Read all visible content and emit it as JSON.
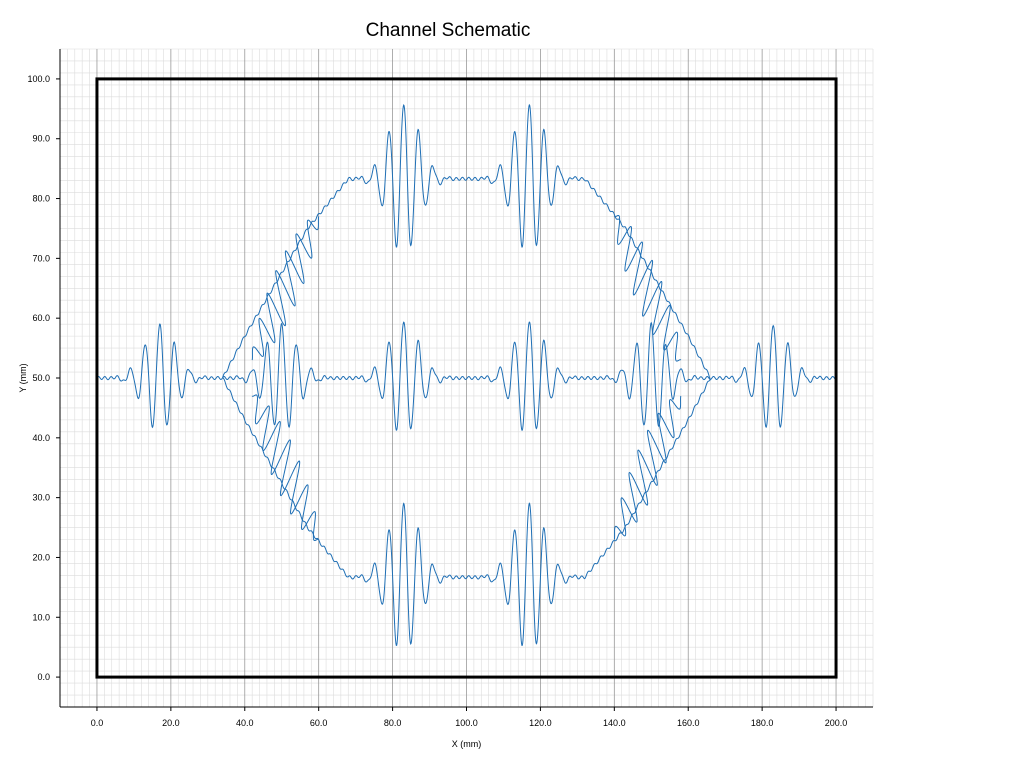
{
  "chart_data": {
    "type": "line",
    "title": "Channel Schematic",
    "xlabel": "X (mm)",
    "ylabel": "Y (mm)",
    "xlim": [
      -10,
      210
    ],
    "ylim": [
      -5,
      105
    ],
    "x_ticks": [
      "0.0",
      "20.0",
      "40.0",
      "60.0",
      "80.0",
      "100.0",
      "120.0",
      "140.0",
      "160.0",
      "180.0",
      "200.0"
    ],
    "y_ticks": [
      "0.0",
      "10.0",
      "20.0",
      "30.0",
      "40.0",
      "50.0",
      "60.0",
      "70.0",
      "80.0",
      "90.0",
      "100.0"
    ],
    "grid": true,
    "boundary": {
      "x0": 0,
      "y0": 0,
      "x1": 200,
      "y1": 100,
      "color": "#000000"
    },
    "series_color": "#1f6fb5",
    "series": [
      {
        "type": "wavy-path",
        "points": [
          [
            0,
            50
          ],
          [
            34,
            50
          ],
          [
            60,
            50
          ],
          [
            140,
            50
          ],
          [
            166,
            50
          ],
          [
            200,
            50
          ]
        ],
        "bursts": [
          {
            "x": 17,
            "amp": 9
          },
          {
            "x": 50,
            "amp": 9
          },
          {
            "x": 83,
            "amp": 9.5
          },
          {
            "x": 117,
            "amp": 9.5
          },
          {
            "x": 150,
            "amp": 9
          },
          {
            "x": 183,
            "amp": 9
          }
        ]
      },
      {
        "type": "wavy-path",
        "points": [
          [
            34,
            50
          ],
          [
            40,
            57
          ],
          [
            57,
            75
          ],
          [
            68,
            83.3
          ],
          [
            80,
            83.3
          ],
          [
            120,
            83.3
          ],
          [
            132,
            83.3
          ],
          [
            143,
            75
          ],
          [
            160,
            57
          ],
          [
            166,
            50
          ]
        ],
        "bursts": [
          {
            "x": 83,
            "amp": 12.5
          },
          {
            "x": 117,
            "amp": 12.5
          }
        ],
        "slanted": [
          {
            "x0": 42,
            "y0": 53,
            "x1": 60,
            "y1": 77,
            "count": 7,
            "amp": 7
          },
          {
            "x0": 140,
            "y0": 77,
            "x1": 158,
            "y1": 53,
            "count": 7,
            "amp": 7
          }
        ]
      },
      {
        "type": "wavy-path",
        "points": [
          [
            34,
            50
          ],
          [
            40,
            43
          ],
          [
            57,
            25
          ],
          [
            68,
            16.7
          ],
          [
            80,
            16.7
          ],
          [
            120,
            16.7
          ],
          [
            132,
            16.7
          ],
          [
            143,
            25
          ],
          [
            160,
            43
          ],
          [
            166,
            50
          ]
        ],
        "bursts": [
          {
            "x": 83,
            "amp": 12.5
          },
          {
            "x": 117,
            "amp": 12.5
          }
        ],
        "slanted": [
          {
            "x0": 42,
            "y0": 47,
            "x1": 60,
            "y1": 23,
            "count": 7,
            "amp": 7
          },
          {
            "x0": 140,
            "y0": 23,
            "x1": 158,
            "y1": 47,
            "count": 7,
            "amp": 7
          }
        ]
      }
    ]
  }
}
